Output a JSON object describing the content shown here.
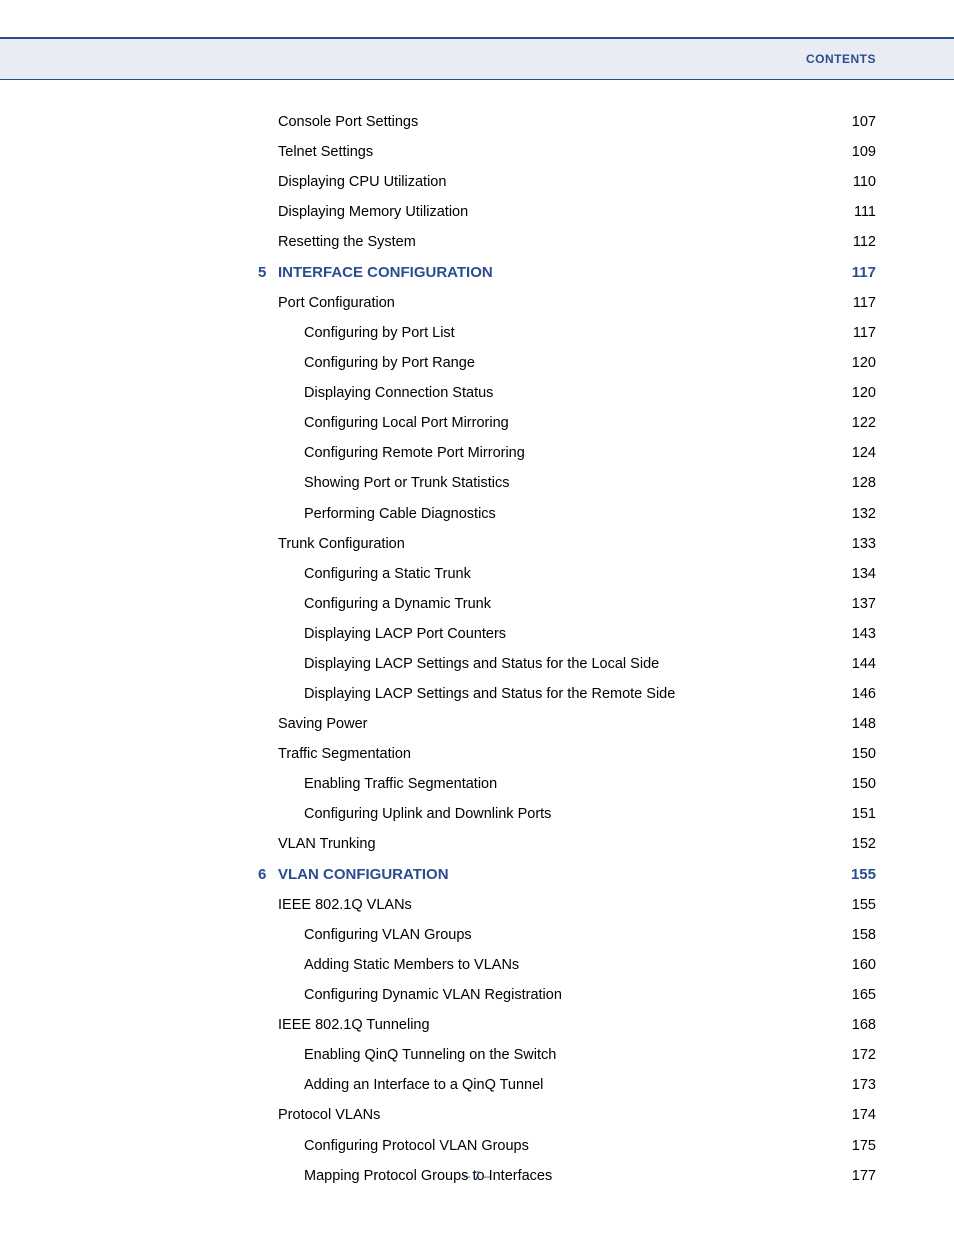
{
  "header": {
    "label": "CONTENTS"
  },
  "footer": {
    "text": "– 7 –"
  },
  "colors": {
    "accent": "#2a4d8f",
    "band_bg": "#e9ecf3",
    "text": "#000000",
    "page_bg": "#ffffff"
  },
  "typography": {
    "body_size_pt": 11,
    "chapter_size_pt": 11.5,
    "header_size_pt": 9,
    "footer_size_pt": 9
  },
  "entries": [
    {
      "title": "Console Port Settings",
      "page": "107",
      "level": 0,
      "type": "plain"
    },
    {
      "title": "Telnet Settings",
      "page": "109",
      "level": 0,
      "type": "plain"
    },
    {
      "title": "Displaying CPU Utilization",
      "page": "110",
      "level": 0,
      "type": "plain"
    },
    {
      "title": "Displaying Memory Utilization",
      "page": "111",
      "level": 0,
      "type": "plain"
    },
    {
      "title": "Resetting the System",
      "page": "112",
      "level": 0,
      "type": "plain"
    },
    {
      "num": "5",
      "title": "INTERFACE CONFIGURATION",
      "page": "117",
      "level": 0,
      "type": "chapter"
    },
    {
      "title": "Port Configuration",
      "page": "117",
      "level": 0,
      "type": "plain"
    },
    {
      "title": "Configuring by Port List",
      "page": "117",
      "level": 1,
      "type": "plain"
    },
    {
      "title": "Configuring by Port Range",
      "page": "120",
      "level": 1,
      "type": "plain"
    },
    {
      "title": "Displaying Connection Status",
      "page": "120",
      "level": 1,
      "type": "plain"
    },
    {
      "title": "Configuring Local Port Mirroring",
      "page": "122",
      "level": 1,
      "type": "plain"
    },
    {
      "title": "Configuring Remote Port Mirroring",
      "page": "124",
      "level": 1,
      "type": "plain"
    },
    {
      "title": "Showing Port or Trunk Statistics",
      "page": "128",
      "level": 1,
      "type": "plain"
    },
    {
      "title": "Performing Cable Diagnostics",
      "page": "132",
      "level": 1,
      "type": "plain"
    },
    {
      "title": "Trunk Configuration",
      "page": "133",
      "level": 0,
      "type": "plain"
    },
    {
      "title": "Configuring a Static Trunk",
      "page": "134",
      "level": 1,
      "type": "plain"
    },
    {
      "title": "Configuring a Dynamic Trunk",
      "page": "137",
      "level": 1,
      "type": "plain"
    },
    {
      "title": "Displaying LACP Port Counters",
      "page": "143",
      "level": 1,
      "type": "plain"
    },
    {
      "title": "Displaying LACP Settings and Status for the Local Side",
      "page": "144",
      "level": 1,
      "type": "plain"
    },
    {
      "title": "Displaying LACP Settings and Status for the Remote Side",
      "page": "146",
      "level": 1,
      "type": "plain"
    },
    {
      "title": "Saving Power",
      "page": "148",
      "level": 0,
      "type": "plain"
    },
    {
      "title": "Traffic Segmentation",
      "page": "150",
      "level": 0,
      "type": "plain"
    },
    {
      "title": "Enabling Traffic Segmentation",
      "page": "150",
      "level": 1,
      "type": "plain"
    },
    {
      "title": "Configuring Uplink and Downlink Ports",
      "page": "151",
      "level": 1,
      "type": "plain"
    },
    {
      "title": "VLAN Trunking",
      "page": "152",
      "level": 0,
      "type": "plain"
    },
    {
      "num": "6",
      "title": "VLAN CONFIGURATION",
      "page": "155",
      "level": 0,
      "type": "chapter"
    },
    {
      "title": "IEEE 802.1Q VLANs",
      "page": "155",
      "level": 0,
      "type": "plain"
    },
    {
      "title": "Configuring VLAN Groups",
      "page": "158",
      "level": 1,
      "type": "plain"
    },
    {
      "title": "Adding Static Members to VLANs",
      "page": "160",
      "level": 1,
      "type": "plain"
    },
    {
      "title": "Configuring Dynamic VLAN Registration",
      "page": "165",
      "level": 1,
      "type": "plain"
    },
    {
      "title": "IEEE 802.1Q Tunneling",
      "page": "168",
      "level": 0,
      "type": "plain"
    },
    {
      "title": "Enabling QinQ Tunneling on the Switch",
      "page": "172",
      "level": 1,
      "type": "plain"
    },
    {
      "title": "Adding an Interface to a QinQ Tunnel",
      "page": "173",
      "level": 1,
      "type": "plain"
    },
    {
      "title": "Protocol VLANs",
      "page": "174",
      "level": 0,
      "type": "plain"
    },
    {
      "title": "Configuring Protocol VLAN Groups",
      "page": "175",
      "level": 1,
      "type": "plain"
    },
    {
      "title": "Mapping Protocol Groups to Interfaces",
      "page": "177",
      "level": 1,
      "type": "plain"
    }
  ]
}
